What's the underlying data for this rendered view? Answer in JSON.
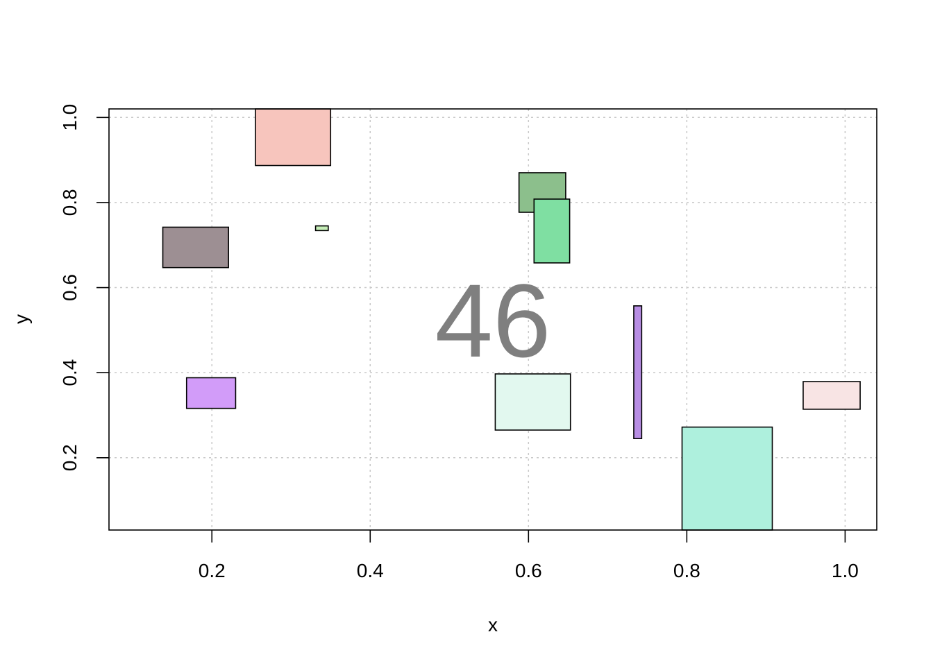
{
  "chart_data": {
    "type": "rect",
    "title": "",
    "xlabel": "x",
    "ylabel": "y",
    "xlim": [
      0.07,
      1.04
    ],
    "ylim": [
      0.03,
      1.02
    ],
    "x_ticks": [
      0.2,
      0.4,
      0.6,
      0.8,
      1.0
    ],
    "x_tick_labels": [
      "0.2",
      "0.4",
      "0.6",
      "0.8",
      "1.0"
    ],
    "y_ticks": [
      0.2,
      0.4,
      0.6,
      0.8,
      1.0
    ],
    "y_tick_labels": [
      "0.2",
      "0.4",
      "0.6",
      "0.8",
      "1.0"
    ],
    "grid": true,
    "center_text": "46",
    "center_text_color": "#7f7f7f",
    "rects": [
      {
        "x0": 0.255,
        "x1": 0.35,
        "y0": 0.887,
        "y1": 1.02,
        "color": "#f7c5bd"
      },
      {
        "x0": 0.588,
        "x1": 0.647,
        "y0": 0.777,
        "y1": 0.87,
        "color": "#8cbf8c"
      },
      {
        "x0": 0.607,
        "x1": 0.652,
        "y0": 0.658,
        "y1": 0.808,
        "color": "#7fdfa2"
      },
      {
        "x0": 0.138,
        "x1": 0.221,
        "y0": 0.647,
        "y1": 0.742,
        "color": "#9d8f93"
      },
      {
        "x0": 0.331,
        "x1": 0.347,
        "y0": 0.734,
        "y1": 0.745,
        "color": "#c6eeb8"
      },
      {
        "x0": 0.168,
        "x1": 0.23,
        "y0": 0.316,
        "y1": 0.388,
        "color": "#d29cf9"
      },
      {
        "x0": 0.558,
        "x1": 0.653,
        "y0": 0.265,
        "y1": 0.397,
        "color": "#e2f8ef"
      },
      {
        "x0": 0.733,
        "x1": 0.743,
        "y0": 0.245,
        "y1": 0.557,
        "color": "#b88ee4"
      },
      {
        "x0": 0.947,
        "x1": 1.019,
        "y0": 0.314,
        "y1": 0.379,
        "color": "#f8e4e4"
      },
      {
        "x0": 0.794,
        "x1": 0.908,
        "y0": 0.03,
        "y1": 0.272,
        "color": "#aef0dd"
      }
    ]
  }
}
